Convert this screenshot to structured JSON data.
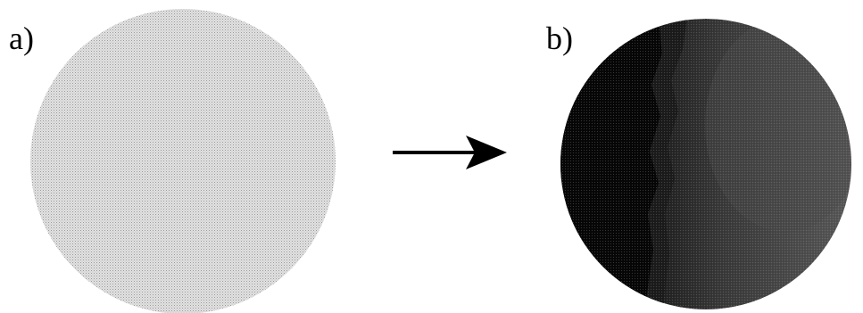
{
  "panels": [
    {
      "label": "a)"
    },
    {
      "label": "b)"
    }
  ],
  "colors": {
    "background": "#ffffff",
    "panel_a_fill": "#d2d2d2",
    "panel_b_dark": "#0a0a0a",
    "panel_b_mid": "#3a3a3a",
    "panel_b_light": "#5a5a5a",
    "arrow": "#000000"
  }
}
